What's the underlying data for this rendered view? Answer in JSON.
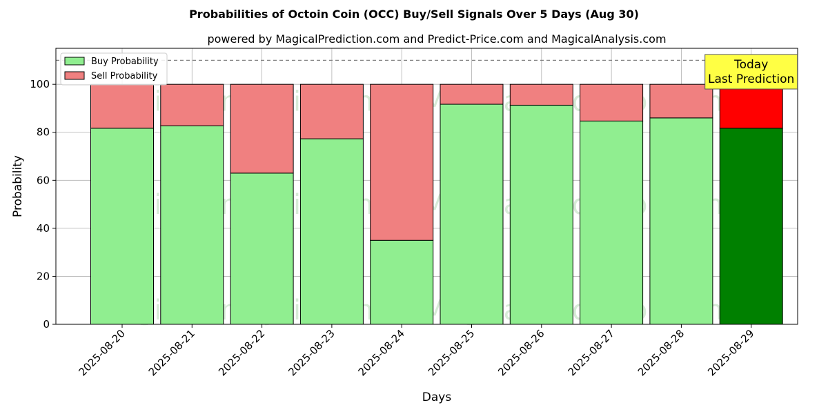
{
  "chart_data": {
    "type": "bar",
    "stacked": true,
    "title": "Probabilities of Octoin Coin (OCC) Buy/Sell Signals Over 5 Days (Aug 30)",
    "subtitle": "powered by MagicalPrediction.com and Predict-Price.com and MagicalAnalysis.com",
    "xlabel": "Days",
    "ylabel": "Probability",
    "ylim": [
      0,
      115
    ],
    "yticks": [
      0,
      20,
      40,
      60,
      80,
      100
    ],
    "grid": true,
    "legend_position": "top-left",
    "reference_line": 110,
    "categories": [
      "2025-08-20",
      "2025-08-21",
      "2025-08-22",
      "2025-08-23",
      "2025-08-24",
      "2025-08-25",
      "2025-08-26",
      "2025-08-27",
      "2025-08-28",
      "2025-08-29"
    ],
    "series": [
      {
        "name": "Buy Probability",
        "values": [
          81.7,
          82.7,
          63.0,
          77.3,
          35.0,
          91.7,
          91.3,
          84.7,
          86.0,
          81.7
        ],
        "color": "#90ee90",
        "highlight_color": "#008000"
      },
      {
        "name": "Sell Probability",
        "values": [
          18.3,
          17.3,
          37.0,
          22.7,
          65.0,
          8.3,
          8.7,
          15.3,
          14.0,
          18.3
        ],
        "color": "#f08080",
        "highlight_color": "#ff0000"
      }
    ],
    "highlight_index": 9,
    "annotation": {
      "lines": [
        "Today",
        "Last Prediction"
      ],
      "color": "#ffff44"
    },
    "watermarks": [
      "MagicalAnalysis.com",
      "MagicalPrediction.com"
    ]
  }
}
